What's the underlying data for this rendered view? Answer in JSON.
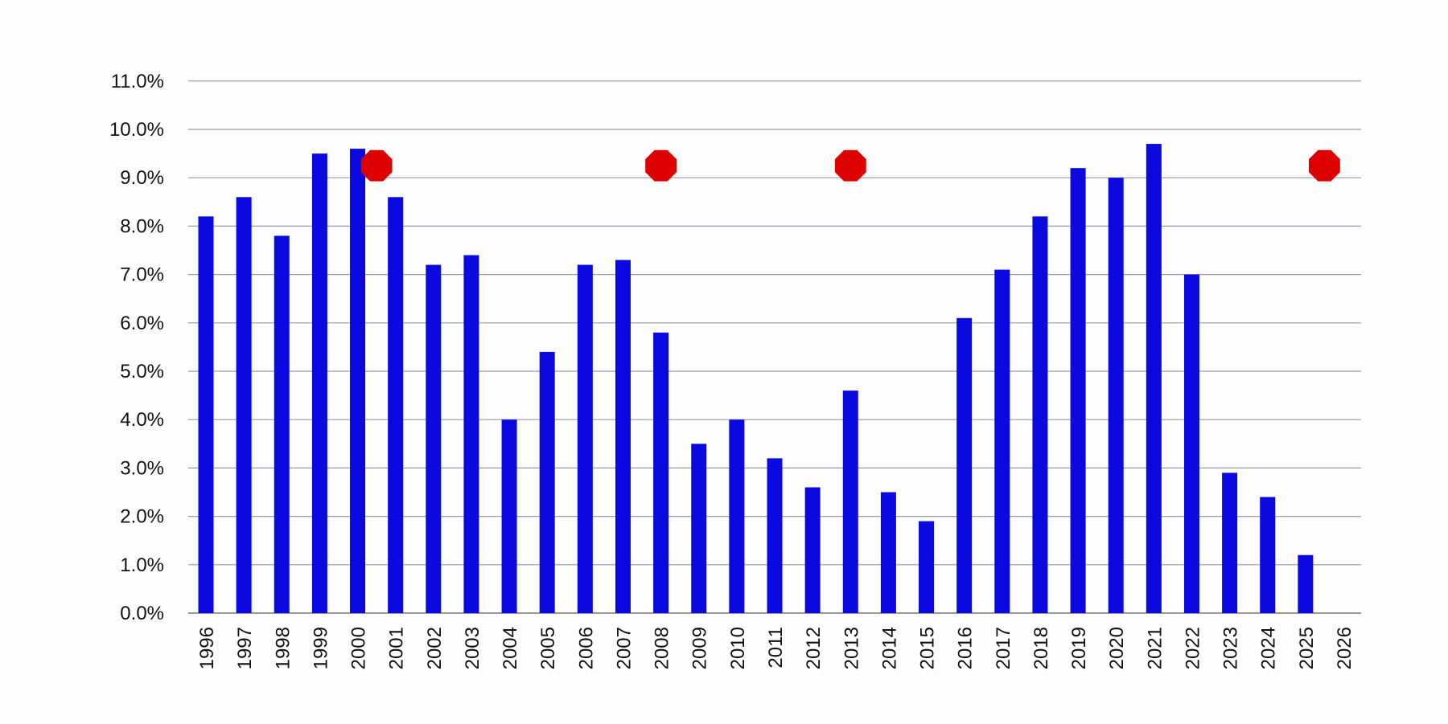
{
  "chart_data": {
    "type": "bar",
    "title": "",
    "xlabel": "",
    "ylabel": "",
    "ylim": [
      0,
      11
    ],
    "y_ticks": [
      "0.0%",
      "1.0%",
      "2.0%",
      "3.0%",
      "4.0%",
      "5.0%",
      "6.0%",
      "7.0%",
      "8.0%",
      "9.0%",
      "10.0%",
      "11.0%"
    ],
    "y_tick_values": [
      0,
      1,
      2,
      3,
      4,
      5,
      6,
      7,
      8,
      9,
      10,
      11
    ],
    "grid": true,
    "legend": "none",
    "categories": [
      "1996",
      "1997",
      "1998",
      "1999",
      "2000",
      "2001",
      "2002",
      "2003",
      "2004",
      "2005",
      "2006",
      "2007",
      "2008",
      "2009",
      "2010",
      "2011",
      "2012",
      "2013",
      "2014",
      "2015",
      "2016",
      "2017",
      "2018",
      "2019",
      "2020",
      "2021",
      "2022",
      "2023",
      "2024",
      "2025",
      "2026"
    ],
    "series": [
      {
        "values": [
          8.2,
          8.6,
          7.8,
          9.5,
          9.6,
          8.6,
          7.2,
          7.4,
          4.0,
          5.4,
          7.2,
          7.3,
          5.8,
          3.5,
          4.0,
          3.2,
          2.6,
          4.6,
          2.5,
          1.9,
          6.1,
          7.1,
          8.2,
          9.2,
          9.0,
          9.7,
          7.0,
          2.9,
          2.4,
          1.2,
          null
        ],
        "color": "#0a0ae0"
      }
    ],
    "markers": {
      "color": "#dd0000",
      "points": [
        {
          "x": 2000.5,
          "y": 9.25
        },
        {
          "x": 2008,
          "y": 9.25
        },
        {
          "x": 2013,
          "y": 9.25
        },
        {
          "x": 2025.5,
          "y": 9.25
        }
      ]
    }
  }
}
